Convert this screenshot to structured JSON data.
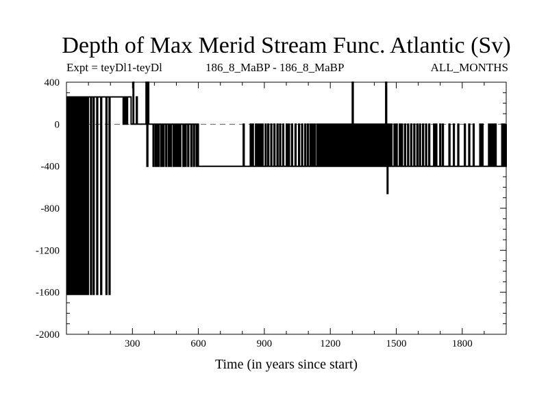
{
  "chart_data": {
    "type": "line",
    "title": "Depth of Max Merid Stream Func. Atlantic (Sv)",
    "subtitle_left": "Expt = teyDl1-teyDl",
    "subtitle_center": "186_8_MaBP - 186_8_MaBP",
    "subtitle_right": "ALL_MONTHS",
    "xlabel": "Time (in years since start)",
    "ylabel": "",
    "xlim": [
      0,
      2000
    ],
    "ylim": [
      -2000,
      400
    ],
    "x_ticks": [
      300,
      600,
      900,
      1200,
      1500,
      1800
    ],
    "y_ticks": [
      400,
      0,
      -400,
      -800,
      -1200,
      -1600,
      -2000
    ],
    "grid": false,
    "zero_line": "dashed",
    "series": [
      {
        "values": [
          [
            0,
            -1620
          ],
          [
            4,
            260
          ],
          [
            8,
            -1620
          ],
          [
            12,
            260
          ],
          [
            16,
            -1620
          ],
          [
            20,
            260
          ],
          [
            24,
            -1620
          ],
          [
            28,
            260
          ],
          [
            32,
            -1620
          ],
          [
            36,
            260
          ],
          [
            40,
            -1620
          ],
          [
            44,
            260
          ],
          [
            48,
            -1620
          ],
          [
            52,
            260
          ],
          [
            56,
            -1620
          ],
          [
            60,
            260
          ],
          [
            64,
            -1620
          ],
          [
            68,
            260
          ],
          [
            72,
            -1620
          ],
          [
            76,
            260
          ],
          [
            80,
            -1620
          ],
          [
            84,
            260
          ],
          [
            88,
            -1620
          ],
          [
            92,
            260
          ],
          [
            96,
            -1620
          ],
          [
            100,
            260
          ],
          [
            106,
            260
          ],
          [
            110,
            -1620
          ],
          [
            114,
            260
          ],
          [
            118,
            260
          ],
          [
            122,
            -1620
          ],
          [
            126,
            260
          ],
          [
            134,
            260
          ],
          [
            138,
            -1620
          ],
          [
            142,
            260
          ],
          [
            150,
            260
          ],
          [
            156,
            -1620
          ],
          [
            160,
            260
          ],
          [
            176,
            260
          ],
          [
            180,
            -1620
          ],
          [
            184,
            260
          ],
          [
            190,
            260
          ],
          [
            194,
            -1620
          ],
          [
            198,
            260
          ],
          [
            255,
            260
          ],
          [
            258,
            0
          ],
          [
            262,
            260
          ],
          [
            266,
            0
          ],
          [
            270,
            260
          ],
          [
            274,
            0
          ],
          [
            278,
            260
          ],
          [
            290,
            260
          ],
          [
            294,
            0
          ],
          [
            300,
            0
          ],
          [
            303,
            400
          ],
          [
            306,
            0
          ],
          [
            314,
            0
          ],
          [
            318,
            260
          ],
          [
            322,
            0
          ],
          [
            358,
            0
          ],
          [
            362,
            400
          ],
          [
            366,
            -400
          ],
          [
            370,
            400
          ],
          [
            374,
            0
          ],
          [
            390,
            0
          ],
          [
            394,
            -400
          ],
          [
            398,
            0
          ],
          [
            405,
            -400
          ],
          [
            410,
            0
          ],
          [
            416,
            -400
          ],
          [
            422,
            0
          ],
          [
            430,
            -400
          ],
          [
            436,
            0
          ],
          [
            440,
            -400
          ],
          [
            444,
            0
          ],
          [
            452,
            -400
          ],
          [
            456,
            0
          ],
          [
            464,
            -400
          ],
          [
            468,
            0
          ],
          [
            474,
            -400
          ],
          [
            478,
            0
          ],
          [
            486,
            -400
          ],
          [
            490,
            0
          ],
          [
            496,
            -400
          ],
          [
            500,
            0
          ],
          [
            506,
            -400
          ],
          [
            510,
            0
          ],
          [
            516,
            -400
          ],
          [
            520,
            0
          ],
          [
            530,
            -400
          ],
          [
            534,
            0
          ],
          [
            540,
            -400
          ],
          [
            544,
            0
          ],
          [
            552,
            -400
          ],
          [
            556,
            0
          ],
          [
            566,
            -400
          ],
          [
            570,
            0
          ],
          [
            578,
            -400
          ],
          [
            582,
            0
          ],
          [
            590,
            -400
          ],
          [
            594,
            0
          ],
          [
            600,
            -400
          ],
          [
            800,
            -400
          ],
          [
            804,
            0
          ],
          [
            808,
            -400
          ],
          [
            832,
            -400
          ],
          [
            836,
            0
          ],
          [
            840,
            -400
          ],
          [
            846,
            0
          ],
          [
            850,
            -400
          ],
          [
            860,
            0
          ],
          [
            864,
            -400
          ],
          [
            870,
            0
          ],
          [
            874,
            -400
          ],
          [
            880,
            0
          ],
          [
            884,
            -400
          ],
          [
            890,
            0
          ],
          [
            894,
            -400
          ],
          [
            904,
            0
          ],
          [
            908,
            -400
          ],
          [
            916,
            0
          ],
          [
            920,
            -400
          ],
          [
            930,
            0
          ],
          [
            934,
            -400
          ],
          [
            944,
            0
          ],
          [
            948,
            -400
          ],
          [
            958,
            0
          ],
          [
            962,
            -400
          ],
          [
            970,
            0
          ],
          [
            974,
            -400
          ],
          [
            984,
            0
          ],
          [
            988,
            -400
          ],
          [
            1000,
            0
          ],
          [
            1004,
            -400
          ],
          [
            1010,
            0
          ],
          [
            1014,
            -400
          ],
          [
            1024,
            0
          ],
          [
            1028,
            -400
          ],
          [
            1040,
            0
          ],
          [
            1044,
            -400
          ],
          [
            1056,
            0
          ],
          [
            1060,
            -400
          ],
          [
            1070,
            0
          ],
          [
            1074,
            -400
          ],
          [
            1084,
            0
          ],
          [
            1088,
            -400
          ],
          [
            1096,
            0
          ],
          [
            1100,
            -400
          ],
          [
            1108,
            0
          ],
          [
            1112,
            -400
          ],
          [
            1118,
            0
          ],
          [
            1122,
            -400
          ],
          [
            1128,
            0
          ],
          [
            1132,
            -400
          ],
          [
            1140,
            0
          ],
          [
            1144,
            -400
          ],
          [
            1150,
            0
          ],
          [
            1154,
            -400
          ],
          [
            1160,
            0
          ],
          [
            1164,
            -400
          ],
          [
            1170,
            0
          ],
          [
            1174,
            -400
          ],
          [
            1180,
            0
          ],
          [
            1184,
            -400
          ],
          [
            1188,
            0
          ],
          [
            1192,
            -400
          ],
          [
            1196,
            0
          ],
          [
            1200,
            -400
          ],
          [
            1204,
            0
          ],
          [
            1208,
            -400
          ],
          [
            1212,
            0
          ],
          [
            1216,
            -400
          ],
          [
            1220,
            0
          ],
          [
            1224,
            -400
          ],
          [
            1228,
            0
          ],
          [
            1232,
            -400
          ],
          [
            1236,
            0
          ],
          [
            1240,
            -400
          ],
          [
            1244,
            0
          ],
          [
            1248,
            -400
          ],
          [
            1252,
            0
          ],
          [
            1256,
            -400
          ],
          [
            1260,
            0
          ],
          [
            1264,
            -400
          ],
          [
            1268,
            0
          ],
          [
            1272,
            -400
          ],
          [
            1276,
            0
          ],
          [
            1280,
            -400
          ],
          [
            1284,
            0
          ],
          [
            1288,
            -400
          ],
          [
            1292,
            0
          ],
          [
            1296,
            -400
          ],
          [
            1300,
            400
          ],
          [
            1304,
            -400
          ],
          [
            1308,
            0
          ],
          [
            1312,
            -400
          ],
          [
            1316,
            0
          ],
          [
            1320,
            -400
          ],
          [
            1324,
            0
          ],
          [
            1328,
            -400
          ],
          [
            1332,
            0
          ],
          [
            1336,
            -400
          ],
          [
            1340,
            0
          ],
          [
            1344,
            -400
          ],
          [
            1348,
            0
          ],
          [
            1352,
            -400
          ],
          [
            1356,
            0
          ],
          [
            1360,
            -400
          ],
          [
            1364,
            0
          ],
          [
            1368,
            -400
          ],
          [
            1374,
            0
          ],
          [
            1378,
            -400
          ],
          [
            1384,
            0
          ],
          [
            1388,
            -400
          ],
          [
            1394,
            0
          ],
          [
            1398,
            -400
          ],
          [
            1404,
            0
          ],
          [
            1408,
            -400
          ],
          [
            1412,
            0
          ],
          [
            1416,
            -400
          ],
          [
            1420,
            0
          ],
          [
            1424,
            -400
          ],
          [
            1428,
            0
          ],
          [
            1432,
            -400
          ],
          [
            1436,
            0
          ],
          [
            1440,
            -400
          ],
          [
            1444,
            0
          ],
          [
            1448,
            -400
          ],
          [
            1452,
            400
          ],
          [
            1456,
            -400
          ],
          [
            1459,
            -660
          ],
          [
            1462,
            0
          ],
          [
            1468,
            -400
          ],
          [
            1474,
            0
          ],
          [
            1480,
            -400
          ],
          [
            1490,
            0
          ],
          [
            1494,
            -400
          ],
          [
            1500,
            0
          ],
          [
            1504,
            -400
          ],
          [
            1514,
            0
          ],
          [
            1518,
            -400
          ],
          [
            1524,
            0
          ],
          [
            1528,
            -400
          ],
          [
            1538,
            0
          ],
          [
            1542,
            -400
          ],
          [
            1552,
            0
          ],
          [
            1556,
            -400
          ],
          [
            1566,
            0
          ],
          [
            1570,
            -400
          ],
          [
            1580,
            0
          ],
          [
            1584,
            -400
          ],
          [
            1594,
            0
          ],
          [
            1598,
            -400
          ],
          [
            1606,
            0
          ],
          [
            1610,
            -400
          ],
          [
            1620,
            0
          ],
          [
            1624,
            -400
          ],
          [
            1634,
            0
          ],
          [
            1638,
            -400
          ],
          [
            1648,
            0
          ],
          [
            1652,
            -400
          ],
          [
            1670,
            0
          ],
          [
            1674,
            -400
          ],
          [
            1680,
            0
          ],
          [
            1684,
            -400
          ],
          [
            1698,
            0
          ],
          [
            1702,
            -400
          ],
          [
            1710,
            0
          ],
          [
            1714,
            -400
          ],
          [
            1740,
            0
          ],
          [
            1744,
            -400
          ],
          [
            1760,
            0
          ],
          [
            1764,
            -400
          ],
          [
            1780,
            0
          ],
          [
            1784,
            -400
          ],
          [
            1810,
            0
          ],
          [
            1814,
            -400
          ],
          [
            1830,
            0
          ],
          [
            1834,
            -400
          ],
          [
            1850,
            0
          ],
          [
            1854,
            -400
          ],
          [
            1880,
            0
          ],
          [
            1884,
            -400
          ],
          [
            1890,
            0
          ],
          [
            1894,
            -400
          ],
          [
            1920,
            0
          ],
          [
            1924,
            -400
          ],
          [
            1930,
            0
          ],
          [
            1934,
            -400
          ],
          [
            1940,
            0
          ],
          [
            1944,
            -400
          ],
          [
            1950,
            0
          ],
          [
            1954,
            -400
          ],
          [
            1980,
            0
          ],
          [
            1984,
            -400
          ],
          [
            1990,
            0
          ],
          [
            1994,
            -400
          ],
          [
            2000,
            0
          ]
        ]
      }
    ]
  }
}
